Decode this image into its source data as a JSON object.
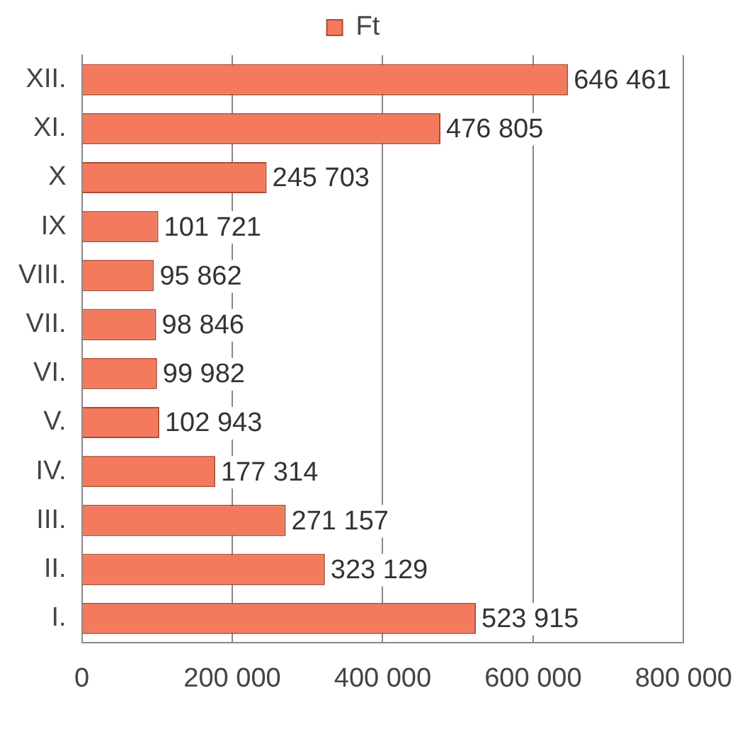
{
  "chart_data": {
    "type": "bar",
    "orientation": "horizontal",
    "legend": "top",
    "categories": [
      "XII.",
      "XI.",
      "X",
      "IX",
      "VIII.",
      "VII.",
      "VI.",
      "V.",
      "IV.",
      "III.",
      "II.",
      "I."
    ],
    "series": [
      {
        "name": "Ft",
        "color": "#f47a5e",
        "values": [
          646461,
          476805,
          245703,
          101721,
          95862,
          98846,
          99982,
          102943,
          177314,
          271157,
          323129,
          523915
        ],
        "value_labels": [
          "646 461",
          "476 805",
          "245 703",
          "101 721",
          "95 862",
          "98 846",
          "99 982",
          "102 943",
          "177 314",
          "271 157",
          "323 129",
          "523 915"
        ]
      }
    ],
    "xlim": [
      0,
      800000
    ],
    "xticks": [
      0,
      {
        "value": 200000,
        "label": "200 000"
      },
      {
        "value": 400000,
        "label": "400 000"
      },
      {
        "value": 600000,
        "label": "600 000"
      },
      {
        "value": 800000,
        "label": "800 000"
      }
    ],
    "grid": "x"
  }
}
